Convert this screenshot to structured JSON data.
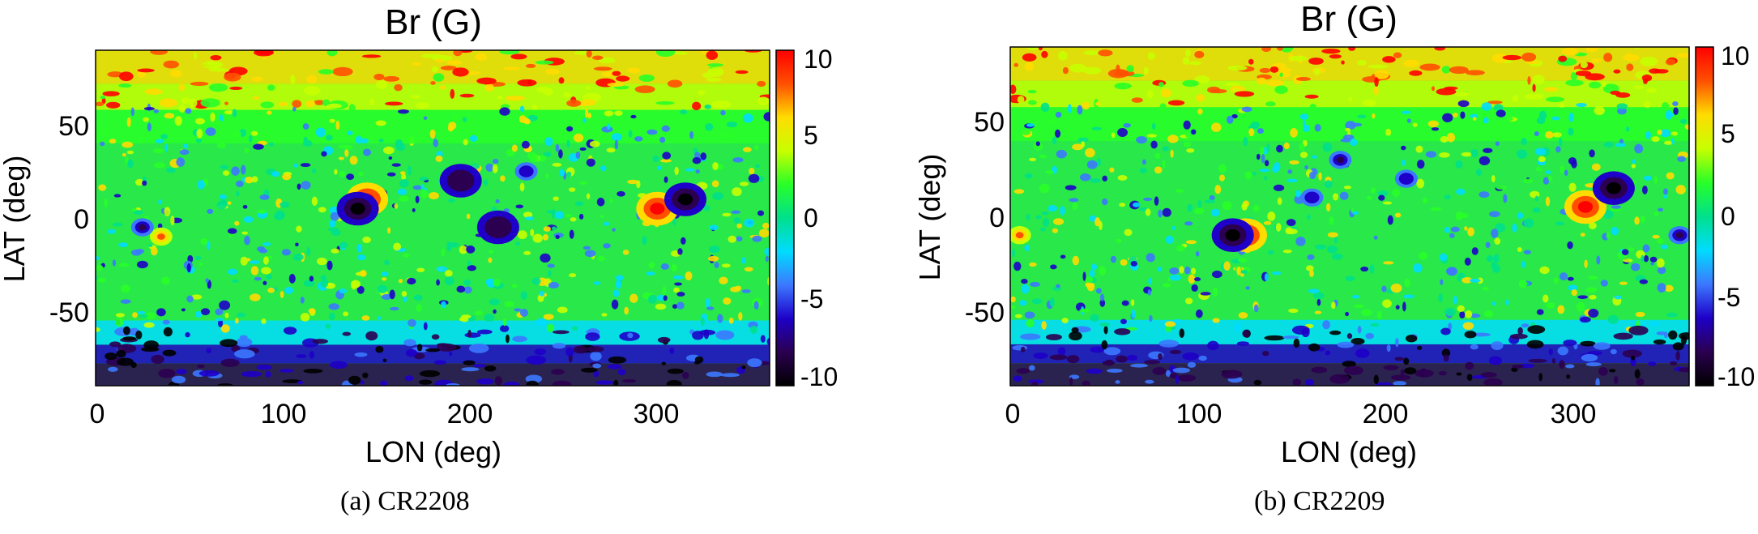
{
  "chart_data": [
    {
      "type": "heatmap",
      "title": "Br (G)",
      "xlabel": "LON (deg)",
      "ylabel": "LAT (deg)",
      "xlim": [
        0,
        360
      ],
      "ylim": [
        -90,
        90
      ],
      "xticks": [
        "0",
        "100",
        "200",
        "300"
      ],
      "yticks": [
        "50",
        "0",
        "-50"
      ],
      "colorbar": {
        "min": -10,
        "max": 10,
        "ticks": [
          "10",
          "5",
          "0",
          "-5",
          "-10"
        ],
        "colormap": [
          "#000000",
          "#2b0050",
          "#1e00c8",
          "#3c78ff",
          "#00dcff",
          "#00e08c",
          "#28ff28",
          "#c8ff00",
          "#ffdc00",
          "#ff5000",
          "#ff0000"
        ]
      },
      "features": [
        {
          "lon": 300,
          "lat": 5,
          "value": 10
        },
        {
          "lon": 315,
          "lat": 10,
          "value": -10
        },
        {
          "lon": 145,
          "lat": 10,
          "value": 10
        },
        {
          "lon": 140,
          "lat": 5,
          "value": -10
        },
        {
          "lon": 195,
          "lat": 20,
          "value": -9
        },
        {
          "lon": 215,
          "lat": -5,
          "value": -9
        },
        {
          "lon": 35,
          "lat": -10,
          "value": 8
        },
        {
          "lon": 25,
          "lat": -5,
          "value": -8
        },
        {
          "lon": 230,
          "lat": 25,
          "value": -7
        }
      ],
      "caption": "(a) CR2208"
    },
    {
      "type": "heatmap",
      "title": "Br (G)",
      "xlabel": "LON (deg)",
      "ylabel": "LAT (deg)",
      "xlim": [
        0,
        360
      ],
      "ylim": [
        -90,
        90
      ],
      "xticks": [
        "0",
        "100",
        "200",
        "300"
      ],
      "yticks": [
        "50",
        "0",
        "-50"
      ],
      "colorbar": {
        "min": -10,
        "max": 10,
        "ticks": [
          "10",
          "5",
          "0",
          "-5",
          "-10"
        ],
        "colormap": [
          "#000000",
          "#2b0050",
          "#1e00c8",
          "#3c78ff",
          "#00dcff",
          "#00e08c",
          "#28ff28",
          "#c8ff00",
          "#ffdc00",
          "#ff5000",
          "#ff0000"
        ]
      },
      "features": [
        {
          "lon": 305,
          "lat": 5,
          "value": 9
        },
        {
          "lon": 320,
          "lat": 15,
          "value": -10
        },
        {
          "lon": 125,
          "lat": -10,
          "value": 10
        },
        {
          "lon": 118,
          "lat": -10,
          "value": -10
        },
        {
          "lon": 175,
          "lat": 30,
          "value": -8
        },
        {
          "lon": 210,
          "lat": 20,
          "value": -7
        },
        {
          "lon": 355,
          "lat": -10,
          "value": -8
        },
        {
          "lon": 5,
          "lat": -10,
          "value": 8
        },
        {
          "lon": 160,
          "lat": 10,
          "value": -7
        }
      ],
      "caption": "(b) CR2209"
    }
  ]
}
